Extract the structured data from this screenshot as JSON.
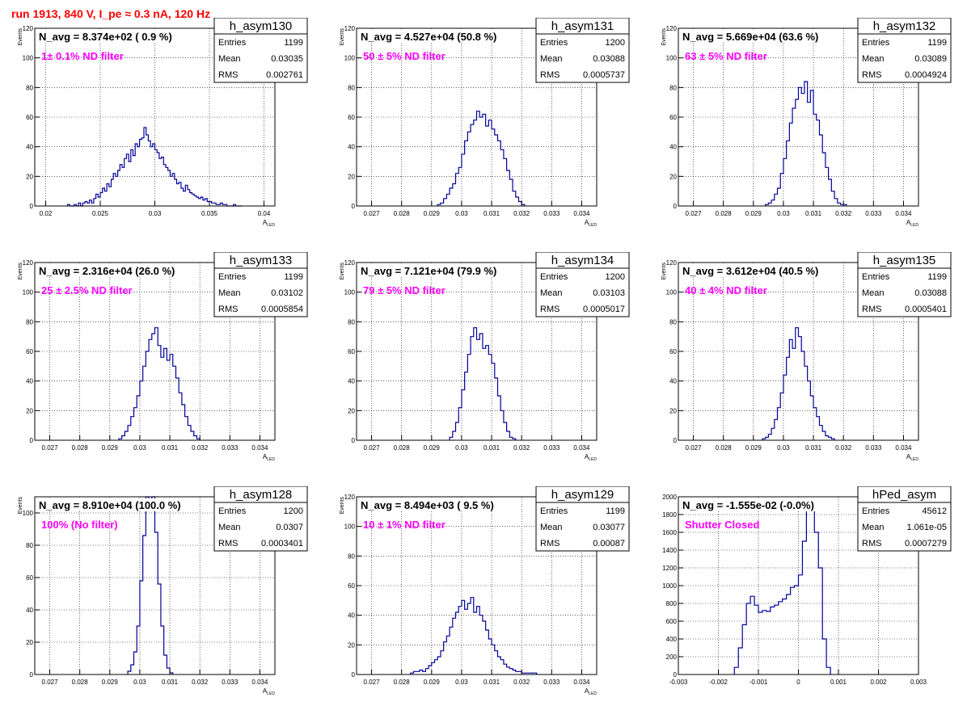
{
  "page": {
    "title": "run 1913,   840 V, I_pe ≈ 0.3 nA, 120 Hz",
    "title_color": "#ff0000"
  },
  "style": {
    "histogram_color": "#000099",
    "annotation_color": "#ff00ff",
    "frame_color": "#000000"
  },
  "chart_data": [
    {
      "type": "histogram",
      "hist_name": "h_asym130",
      "stats": {
        "entries_label": "Entries",
        "entries": "1199",
        "mean_label": "Mean",
        "mean": "0.03035",
        "rms_label": "RMS",
        "rms": "0.002761"
      },
      "title": "N_avg = 8.374e+02 ( 0.9 %)",
      "annotation": "1± 0.1% ND filter",
      "ylabel": "Events",
      "xlabel_main": "A",
      "xlabel_sub": "LED",
      "xlim": [
        0.019,
        0.041
      ],
      "xticks": [
        0.02,
        0.025,
        0.03,
        0.035,
        0.04
      ],
      "xtick_labels": [
        "0.02",
        "0.025",
        "0.03",
        "0.035",
        "0.04"
      ],
      "ylim": [
        0,
        120
      ],
      "yticks": [
        0,
        20,
        40,
        60,
        80,
        100,
        120
      ],
      "ytick_labels": [
        "0",
        "20",
        "40",
        "60",
        "80",
        "100",
        "120"
      ],
      "bin_start": 0.022,
      "bin_width": 0.0002,
      "values": [
        1,
        0,
        0,
        1,
        0,
        2,
        0,
        2,
        3,
        2,
        4,
        2,
        5,
        8,
        6,
        9,
        12,
        10,
        15,
        13,
        18,
        22,
        20,
        24,
        28,
        26,
        32,
        35,
        30,
        38,
        34,
        42,
        40,
        45,
        46,
        53,
        48,
        44,
        40,
        42,
        38,
        36,
        32,
        33,
        28,
        26,
        24,
        20,
        22,
        18,
        15,
        16,
        12,
        10,
        14,
        11,
        9,
        8,
        7,
        6,
        5,
        6,
        4,
        5,
        3,
        3,
        2,
        2,
        1,
        1,
        2,
        1,
        1,
        0,
        0,
        0,
        1,
        0,
        0,
        0
      ]
    },
    {
      "type": "histogram",
      "hist_name": "h_asym131",
      "stats": {
        "entries_label": "Entries",
        "entries": "1200",
        "mean_label": "Mean",
        "mean": "0.03088",
        "rms_label": "RMS",
        "rms": "0.0005737"
      },
      "title": "N_avg = 4.527e+04 (50.8 %)",
      "annotation": "50 ± 5% ND filter",
      "ylabel": "Events",
      "xlabel_main": "A",
      "xlabel_sub": "LED",
      "xlim": [
        0.0265,
        0.0345
      ],
      "xticks": [
        0.027,
        0.028,
        0.029,
        0.03,
        0.031,
        0.032,
        0.033,
        0.034
      ],
      "xtick_labels": [
        "0.027",
        "0.028",
        "0.029",
        "0.03",
        "0.031",
        "0.032",
        "0.033",
        "0.034"
      ],
      "ylim": [
        0,
        120
      ],
      "yticks": [
        0,
        20,
        40,
        60,
        80,
        100,
        120
      ],
      "ytick_labels": [
        "0",
        "20",
        "40",
        "60",
        "80",
        "100",
        "120"
      ],
      "bin_start": 0.0292,
      "bin_width": 0.0001,
      "values": [
        1,
        2,
        5,
        8,
        12,
        15,
        22,
        26,
        35,
        44,
        50,
        55,
        58,
        64,
        60,
        62,
        54,
        58,
        52,
        48,
        44,
        38,
        32,
        24,
        18,
        10,
        6,
        3,
        1
      ]
    },
    {
      "type": "histogram",
      "hist_name": "h_asym132",
      "stats": {
        "entries_label": "Entries",
        "entries": "1199",
        "mean_label": "Mean",
        "mean": "0.03089",
        "rms_label": "RMS",
        "rms": "0.0004924"
      },
      "title": "N_avg = 5.669e+04 (63.6 %)",
      "annotation": "63 ± 5% ND filter",
      "ylabel": "Events",
      "xlabel_main": "A",
      "xlabel_sub": "LED",
      "xlim": [
        0.0265,
        0.0345
      ],
      "xticks": [
        0.027,
        0.028,
        0.029,
        0.03,
        0.031,
        0.032,
        0.033,
        0.034
      ],
      "xtick_labels": [
        "0.027",
        "0.028",
        "0.029",
        "0.03",
        "0.031",
        "0.032",
        "0.033",
        "0.034"
      ],
      "ylim": [
        0,
        120
      ],
      "yticks": [
        0,
        20,
        40,
        60,
        80,
        100,
        120
      ],
      "ytick_labels": [
        "0",
        "20",
        "40",
        "60",
        "80",
        "100",
        "120"
      ],
      "bin_start": 0.0294,
      "bin_width": 0.0001,
      "values": [
        1,
        2,
        4,
        8,
        12,
        22,
        32,
        44,
        56,
        66,
        72,
        80,
        76,
        84,
        70,
        78,
        62,
        58,
        48,
        36,
        26,
        18,
        10,
        5,
        2,
        1,
        1
      ]
    },
    {
      "type": "histogram",
      "hist_name": "h_asym133",
      "stats": {
        "entries_label": "Entries",
        "entries": "1199",
        "mean_label": "Mean",
        "mean": "0.03102",
        "rms_label": "RMS",
        "rms": "0.0005854"
      },
      "title": "N_avg = 2.316e+04 (26.0 %)",
      "annotation": "25 ± 2.5% ND filter",
      "ylabel": "Events",
      "xlabel_main": "A",
      "xlabel_sub": "LED",
      "xlim": [
        0.0265,
        0.0345
      ],
      "xticks": [
        0.027,
        0.028,
        0.029,
        0.03,
        0.031,
        0.032,
        0.033,
        0.034
      ],
      "xtick_labels": [
        "0.027",
        "0.028",
        "0.029",
        "0.03",
        "0.031",
        "0.032",
        "0.033",
        "0.034"
      ],
      "ylim": [
        0,
        120
      ],
      "yticks": [
        0,
        20,
        40,
        60,
        80,
        100,
        120
      ],
      "ytick_labels": [
        "0",
        "20",
        "40",
        "60",
        "80",
        "100",
        "120"
      ],
      "bin_start": 0.0293,
      "bin_width": 0.0001,
      "values": [
        1,
        3,
        6,
        10,
        16,
        22,
        30,
        40,
        50,
        60,
        68,
        72,
        76,
        64,
        56,
        62,
        54,
        58,
        50,
        42,
        32,
        24,
        16,
        10,
        6,
        3,
        1
      ]
    },
    {
      "type": "histogram",
      "hist_name": "h_asym134",
      "stats": {
        "entries_label": "Entries",
        "entries": "1200",
        "mean_label": "Mean",
        "mean": "0.03103",
        "rms_label": "RMS",
        "rms": "0.0005017"
      },
      "title": "N_avg = 7.121e+04 (79.9 %)",
      "annotation": "79 ± 5% ND filter",
      "ylabel": "Events",
      "xlabel_main": "A",
      "xlabel_sub": "LED",
      "xlim": [
        0.0265,
        0.0345
      ],
      "xticks": [
        0.027,
        0.028,
        0.029,
        0.03,
        0.031,
        0.032,
        0.033,
        0.034
      ],
      "xtick_labels": [
        "0.027",
        "0.028",
        "0.029",
        "0.03",
        "0.031",
        "0.032",
        "0.033",
        "0.034"
      ],
      "ylim": [
        0,
        120
      ],
      "yticks": [
        0,
        20,
        40,
        60,
        80,
        100,
        120
      ],
      "ytick_labels": [
        "0",
        "20",
        "40",
        "60",
        "80",
        "100",
        "120"
      ],
      "bin_start": 0.0296,
      "bin_width": 0.0001,
      "values": [
        2,
        6,
        12,
        22,
        34,
        46,
        58,
        70,
        76,
        68,
        72,
        62,
        64,
        58,
        52,
        42,
        30,
        20,
        12,
        6,
        2,
        1
      ]
    },
    {
      "type": "histogram",
      "hist_name": "h_asym135",
      "stats": {
        "entries_label": "Entries",
        "entries": "1199",
        "mean_label": "Mean",
        "mean": "0.03088",
        "rms_label": "RMS",
        "rms": "0.0005401"
      },
      "title": "N_avg = 3.612e+04 (40.5 %)",
      "annotation": "40 ± 4% ND filter",
      "ylabel": "Events",
      "xlabel_main": "A",
      "xlabel_sub": "LED",
      "xlim": [
        0.0265,
        0.0345
      ],
      "xticks": [
        0.027,
        0.028,
        0.029,
        0.03,
        0.031,
        0.032,
        0.033,
        0.034
      ],
      "xtick_labels": [
        "0.027",
        "0.028",
        "0.029",
        "0.03",
        "0.031",
        "0.032",
        "0.033",
        "0.034"
      ],
      "ylim": [
        0,
        120
      ],
      "yticks": [
        0,
        20,
        40,
        60,
        80,
        100,
        120
      ],
      "ytick_labels": [
        "0",
        "20",
        "40",
        "60",
        "80",
        "100",
        "120"
      ],
      "bin_start": 0.0293,
      "bin_width": 0.0001,
      "values": [
        1,
        2,
        4,
        8,
        14,
        22,
        32,
        44,
        56,
        68,
        62,
        76,
        70,
        60,
        50,
        40,
        30,
        22,
        16,
        10,
        6,
        3,
        2,
        1
      ]
    },
    {
      "type": "histogram",
      "hist_name": "h_asym128",
      "stats": {
        "entries_label": "Entries",
        "entries": "1200",
        "mean_label": "Mean",
        "mean": "0.0307",
        "rms_label": "RMS",
        "rms": "0.0003401"
      },
      "title": "N_avg = 8.910e+04 (100.0 %)",
      "annotation": "100% (No filter)",
      "ylabel": "Events",
      "xlabel_main": "A",
      "xlabel_sub": "LED",
      "xlim": [
        0.0265,
        0.0345
      ],
      "xticks": [
        0.027,
        0.028,
        0.029,
        0.03,
        0.031,
        0.032,
        0.033,
        0.034
      ],
      "xtick_labels": [
        "0.027",
        "0.028",
        "0.029",
        "0.03",
        "0.031",
        "0.032",
        "0.033",
        "0.034"
      ],
      "ylim": [
        0,
        110
      ],
      "yticks": [
        0,
        20,
        40,
        60,
        80,
        100
      ],
      "ytick_labels": [
        "0",
        "20",
        "40",
        "60",
        "80",
        "100"
      ],
      "bin_start": 0.0296,
      "bin_width": 0.0001,
      "values": [
        2,
        6,
        14,
        30,
        58,
        86,
        110,
        105,
        110,
        88,
        56,
        30,
        12,
        4,
        1
      ]
    },
    {
      "type": "histogram",
      "hist_name": "h_asym129",
      "stats": {
        "entries_label": "Entries",
        "entries": "1199",
        "mean_label": "Mean",
        "mean": "0.03077",
        "rms_label": "RMS",
        "rms": "0.00087"
      },
      "title": "N_avg = 8.494e+03 ( 9.5 %)",
      "annotation": "10 ± 1% ND filter",
      "ylabel": "Events",
      "xlabel_main": "A",
      "xlabel_sub": "LED",
      "xlim": [
        0.0265,
        0.0345
      ],
      "xticks": [
        0.027,
        0.028,
        0.029,
        0.03,
        0.031,
        0.032,
        0.033,
        0.034
      ],
      "xtick_labels": [
        "0.027",
        "0.028",
        "0.029",
        "0.03",
        "0.031",
        "0.032",
        "0.033",
        "0.034"
      ],
      "ylim": [
        0,
        120
      ],
      "yticks": [
        0,
        20,
        40,
        60,
        80,
        100,
        120
      ],
      "ytick_labels": [
        "0",
        "20",
        "40",
        "60",
        "80",
        "100",
        "120"
      ],
      "bin_start": 0.0283,
      "bin_width": 0.0001,
      "values": [
        1,
        2,
        2,
        3,
        2,
        4,
        6,
        8,
        10,
        12,
        16,
        22,
        26,
        32,
        38,
        42,
        46,
        50,
        44,
        48,
        52,
        42,
        46,
        40,
        36,
        30,
        24,
        20,
        16,
        12,
        10,
        7,
        5,
        4,
        3,
        2,
        2,
        1,
        1,
        1,
        1,
        1
      ]
    },
    {
      "type": "histogram",
      "hist_name": "hPed_asym",
      "stats": {
        "entries_label": "Entries",
        "entries": "45612",
        "mean_label": "Mean",
        "mean": "1.061e-05",
        "rms_label": "RMS",
        "rms": "0.0007279"
      },
      "title": "N_avg = -1.555e-02 (-0.0%)",
      "annotation": "Shutter Closed",
      "ylabel": "",
      "xlabel_main": "",
      "xlabel_sub": "",
      "xlim": [
        -0.003,
        0.003
      ],
      "xticks": [
        -0.003,
        -0.002,
        -0.001,
        0,
        0.001,
        0.002,
        0.003
      ],
      "xtick_labels": [
        "-0.003",
        "-0.002",
        "-0.001",
        "0",
        "0.001",
        "0.002",
        "0.003"
      ],
      "ylim": [
        0,
        2000
      ],
      "yticks": [
        0,
        200,
        400,
        600,
        800,
        1000,
        1200,
        1400,
        1600,
        1800,
        2000
      ],
      "ytick_labels": [
        "0",
        "200",
        "400",
        "600",
        "800",
        "1000",
        "1200",
        "1400",
        "1600",
        "1800",
        "2000"
      ],
      "bin_start": -0.0016,
      "bin_width": 0.0001,
      "values": [
        80,
        300,
        560,
        800,
        880,
        780,
        700,
        720,
        710,
        760,
        780,
        820,
        850,
        900,
        980,
        1000,
        1120,
        1500,
        1950,
        1920,
        1600,
        1200,
        400,
        80
      ]
    }
  ]
}
